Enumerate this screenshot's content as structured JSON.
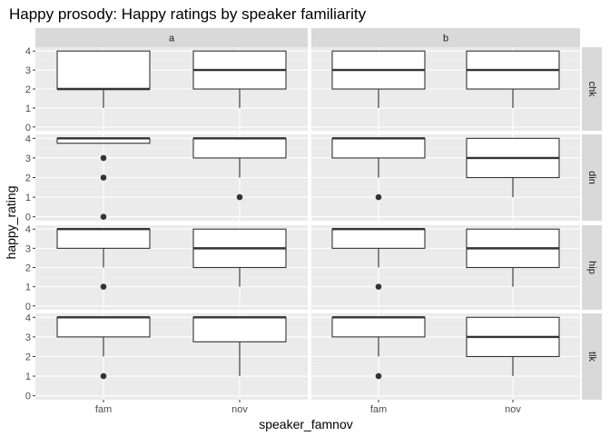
{
  "chart_data": {
    "type": "boxplot",
    "title": "Happy prosody: Happy ratings by speaker familiarity",
    "xlabel": "speaker_famnov",
    "ylabel": "happy_rating",
    "categories": [
      "fam",
      "nov"
    ],
    "yticks": [
      "0",
      "1",
      "2",
      "3",
      "4"
    ],
    "ylim": [
      -0.2,
      4.2
    ],
    "grid": true,
    "facet_cols": [
      "a",
      "b"
    ],
    "facet_rows": [
      "chk",
      "din",
      "hip",
      "tlk"
    ],
    "panels": [
      {
        "col": "a",
        "row": "chk",
        "boxes": [
          {
            "x": "fam",
            "min": 1,
            "q1": 2,
            "median": 2,
            "q3": 4,
            "max": 4,
            "outliers": []
          },
          {
            "x": "nov",
            "min": 1,
            "q1": 2,
            "median": 3,
            "q3": 4,
            "max": 4,
            "outliers": []
          }
        ]
      },
      {
        "col": "b",
        "row": "chk",
        "boxes": [
          {
            "x": "fam",
            "min": 1,
            "q1": 2,
            "median": 3,
            "q3": 4,
            "max": 4,
            "outliers": []
          },
          {
            "x": "nov",
            "min": 1,
            "q1": 2,
            "median": 3,
            "q3": 4,
            "max": 4,
            "outliers": []
          }
        ]
      },
      {
        "col": "a",
        "row": "din",
        "boxes": [
          {
            "x": "fam",
            "min": 3.75,
            "q1": 3.75,
            "median": 4,
            "q3": 4,
            "max": 4,
            "outliers": [
              3,
              2,
              0
            ]
          },
          {
            "x": "nov",
            "min": 2,
            "q1": 3,
            "median": 4,
            "q3": 4,
            "max": 4,
            "outliers": [
              1
            ]
          }
        ]
      },
      {
        "col": "b",
        "row": "din",
        "boxes": [
          {
            "x": "fam",
            "min": 2,
            "q1": 3,
            "median": 4,
            "q3": 4,
            "max": 4,
            "outliers": [
              1
            ]
          },
          {
            "x": "nov",
            "min": 1,
            "q1": 2,
            "median": 3,
            "q3": 4,
            "max": 4,
            "outliers": []
          }
        ]
      },
      {
        "col": "a",
        "row": "hip",
        "boxes": [
          {
            "x": "fam",
            "min": 2,
            "q1": 3,
            "median": 4,
            "q3": 4,
            "max": 4,
            "outliers": [
              1
            ]
          },
          {
            "x": "nov",
            "min": 1,
            "q1": 2,
            "median": 3,
            "q3": 4,
            "max": 4,
            "outliers": []
          }
        ]
      },
      {
        "col": "b",
        "row": "hip",
        "boxes": [
          {
            "x": "fam",
            "min": 2,
            "q1": 3,
            "median": 4,
            "q3": 4,
            "max": 4,
            "outliers": [
              1
            ]
          },
          {
            "x": "nov",
            "min": 1,
            "q1": 2,
            "median": 3,
            "q3": 4,
            "max": 4,
            "outliers": []
          }
        ]
      },
      {
        "col": "a",
        "row": "tlk",
        "boxes": [
          {
            "x": "fam",
            "min": 2,
            "q1": 3,
            "median": 4,
            "q3": 4,
            "max": 4,
            "outliers": [
              1
            ]
          },
          {
            "x": "nov",
            "min": 1,
            "q1": 2.75,
            "median": 4,
            "q3": 4,
            "max": 4,
            "outliers": []
          }
        ]
      },
      {
        "col": "b",
        "row": "tlk",
        "boxes": [
          {
            "x": "fam",
            "min": 2,
            "q1": 3,
            "median": 4,
            "q3": 4,
            "max": 4,
            "outliers": [
              1
            ]
          },
          {
            "x": "nov",
            "min": 1,
            "q1": 2,
            "median": 3,
            "q3": 4,
            "max": 4,
            "outliers": []
          }
        ]
      }
    ],
    "colors": {
      "panel_background": "#EBEBEB",
      "grid_major": "#FFFFFF",
      "grid_minor": "#F2F2F2",
      "strip_background": "#D9D9D9",
      "box_fill": "#FFFFFF",
      "box_line": "#333333",
      "tick_text": "#4D4D4D"
    }
  }
}
